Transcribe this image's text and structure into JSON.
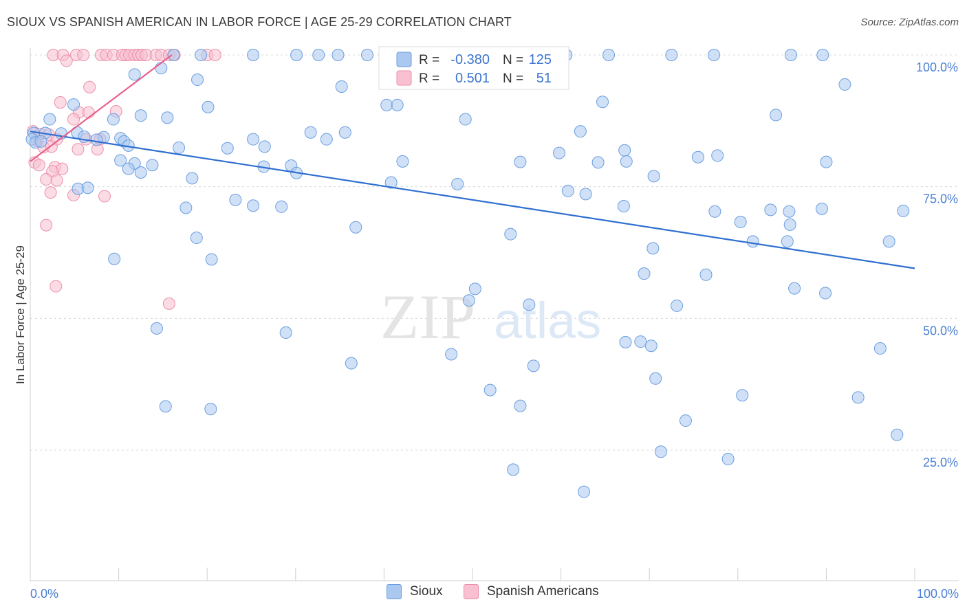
{
  "header": {
    "title": "SIOUX VS SPANISH AMERICAN IN LABOR FORCE | AGE 25-29 CORRELATION CHART",
    "source": "Source: ZipAtlas.com"
  },
  "colors": {
    "sioux_fill": "#aac8f0",
    "sioux_stroke": "#6a9ee0",
    "sioux_line": "#2f6fd0",
    "spanish_fill": "#f8c0d0",
    "spanish_stroke": "#ec8fab",
    "spanish_line": "#e8608a",
    "axis_label": "#4a7fd4",
    "grid": "#d8d8d8"
  },
  "watermark": {
    "zip": "ZIP",
    "atlas": "atlas"
  },
  "legend": {
    "r_label": "R =",
    "n_label": "N =",
    "sioux": {
      "r": "-0.380",
      "n": "125"
    },
    "spanish": {
      "r": "0.501",
      "n": "51"
    }
  },
  "chart_data": {
    "type": "scatter",
    "title": "SIOUX VS SPANISH AMERICAN IN LABOR FORCE | AGE 25-29 CORRELATION CHART",
    "xlabel": "",
    "ylabel": "In Labor Force | Age 25-29",
    "xlim": [
      0,
      100
    ],
    "ylim": [
      0,
      102
    ],
    "x_tick_labels": [
      "0.0%",
      "100.0%"
    ],
    "y_ticks": [
      25,
      50,
      75,
      100
    ],
    "y_tick_labels": [
      "25.0%",
      "50.0%",
      "75.0%",
      "100.0%"
    ],
    "legend_entries": [
      "Sioux",
      "Spanish Americans"
    ],
    "series": [
      {
        "name": "Sioux",
        "trend": {
          "x": [
            0,
            100
          ],
          "y": [
            85.5,
            59.5
          ]
        },
        "points": [
          [
            16.2,
            100
          ],
          [
            19.3,
            100
          ],
          [
            25.2,
            100
          ],
          [
            30.1,
            100
          ],
          [
            32.6,
            100
          ],
          [
            34.8,
            100
          ],
          [
            38.1,
            100
          ],
          [
            41.5,
            100
          ],
          [
            49.1,
            100
          ],
          [
            53.3,
            100
          ],
          [
            55.8,
            100
          ],
          [
            60.6,
            100
          ],
          [
            65.4,
            100
          ],
          [
            72.5,
            100
          ],
          [
            77.3,
            100
          ],
          [
            86.0,
            100
          ],
          [
            89.6,
            100
          ],
          [
            14.8,
            97.5
          ],
          [
            11.8,
            96.3
          ],
          [
            18.9,
            95.3
          ],
          [
            35.2,
            94.0
          ],
          [
            92.1,
            94.4
          ],
          [
            4.9,
            90.6
          ],
          [
            20.1,
            90.1
          ],
          [
            40.3,
            90.5
          ],
          [
            41.5,
            90.5
          ],
          [
            64.7,
            91.1
          ],
          [
            12.5,
            88.5
          ],
          [
            15.5,
            88.1
          ],
          [
            2.2,
            87.8
          ],
          [
            9.4,
            87.8
          ],
          [
            49.2,
            87.8
          ],
          [
            84.3,
            88.6
          ],
          [
            0.4,
            85.2
          ],
          [
            1.7,
            85.2
          ],
          [
            3.5,
            85.1
          ],
          [
            5.3,
            85.3
          ],
          [
            6.1,
            84.5
          ],
          [
            8.3,
            84.4
          ],
          [
            31.7,
            85.3
          ],
          [
            35.6,
            85.3
          ],
          [
            62.2,
            85.5
          ],
          [
            0.2,
            84.0
          ],
          [
            0.6,
            83.4
          ],
          [
            1.2,
            83.6
          ],
          [
            7.5,
            83.9
          ],
          [
            10.2,
            84.2
          ],
          [
            10.6,
            83.6
          ],
          [
            25.2,
            84.0
          ],
          [
            33.5,
            84.0
          ],
          [
            11.1,
            82.8
          ],
          [
            16.8,
            82.4
          ],
          [
            22.3,
            82.3
          ],
          [
            26.5,
            82.6
          ],
          [
            59.8,
            81.4
          ],
          [
            67.2,
            81.9
          ],
          [
            75.5,
            80.6
          ],
          [
            77.7,
            80.9
          ],
          [
            10.2,
            80.0
          ],
          [
            11.8,
            79.4
          ],
          [
            29.5,
            79.0
          ],
          [
            42.1,
            79.8
          ],
          [
            55.4,
            79.7
          ],
          [
            64.2,
            79.6
          ],
          [
            67.4,
            79.8
          ],
          [
            90.0,
            79.7
          ],
          [
            11.1,
            78.4
          ],
          [
            13.8,
            79.1
          ],
          [
            26.4,
            78.8
          ],
          [
            30.1,
            77.6
          ],
          [
            70.5,
            77.0
          ],
          [
            12.5,
            77.7
          ],
          [
            18.3,
            76.6
          ],
          [
            40.8,
            75.8
          ],
          [
            48.3,
            75.5
          ],
          [
            5.4,
            74.6
          ],
          [
            6.5,
            74.8
          ],
          [
            60.8,
            74.2
          ],
          [
            62.8,
            73.6
          ],
          [
            23.2,
            72.5
          ],
          [
            28.4,
            71.2
          ],
          [
            67.1,
            71.3
          ],
          [
            17.6,
            71.0
          ],
          [
            25.2,
            71.4
          ],
          [
            83.7,
            70.6
          ],
          [
            77.4,
            70.3
          ],
          [
            85.8,
            70.3
          ],
          [
            89.5,
            70.8
          ],
          [
            98.7,
            70.4
          ],
          [
            80.3,
            68.3
          ],
          [
            85.9,
            67.8
          ],
          [
            36.8,
            67.3
          ],
          [
            54.3,
            66.0
          ],
          [
            18.8,
            65.3
          ],
          [
            81.7,
            64.6
          ],
          [
            85.6,
            64.6
          ],
          [
            97.1,
            64.6
          ],
          [
            70.4,
            63.3
          ],
          [
            9.5,
            61.3
          ],
          [
            20.5,
            61.2
          ],
          [
            69.4,
            58.5
          ],
          [
            76.4,
            58.3
          ],
          [
            86.4,
            55.7
          ],
          [
            89.9,
            54.8
          ],
          [
            50.3,
            55.6
          ],
          [
            49.6,
            53.4
          ],
          [
            56.4,
            52.6
          ],
          [
            73.1,
            52.4
          ],
          [
            14.3,
            48.1
          ],
          [
            28.9,
            47.3
          ],
          [
            67.3,
            45.5
          ],
          [
            69.0,
            45.6
          ],
          [
            70.2,
            44.8
          ],
          [
            47.6,
            43.2
          ],
          [
            96.1,
            44.3
          ],
          [
            70.7,
            38.6
          ],
          [
            52.0,
            36.4
          ],
          [
            93.6,
            35.0
          ],
          [
            36.3,
            41.5
          ],
          [
            56.9,
            41.0
          ],
          [
            15.3,
            33.3
          ],
          [
            20.4,
            32.8
          ],
          [
            80.5,
            35.4
          ],
          [
            55.4,
            33.4
          ],
          [
            71.3,
            24.7
          ],
          [
            54.6,
            21.3
          ],
          [
            62.6,
            17.1
          ],
          [
            78.9,
            23.3
          ],
          [
            98.0,
            27.9
          ],
          [
            74.1,
            30.6
          ]
        ]
      },
      {
        "name": "Spanish Americans",
        "trend": {
          "x": [
            0,
            16.0
          ],
          "y": [
            79.8,
            100.0
          ]
        },
        "points": [
          [
            2.6,
            100
          ],
          [
            3.7,
            100
          ],
          [
            5.2,
            100
          ],
          [
            6.0,
            100
          ],
          [
            8.0,
            100
          ],
          [
            8.6,
            100
          ],
          [
            9.4,
            100
          ],
          [
            10.4,
            100
          ],
          [
            10.8,
            100
          ],
          [
            11.2,
            100
          ],
          [
            11.8,
            100
          ],
          [
            12.2,
            100
          ],
          [
            12.6,
            100
          ],
          [
            13.1,
            100
          ],
          [
            14.2,
            100
          ],
          [
            14.8,
            100
          ],
          [
            15.7,
            100
          ],
          [
            16.3,
            100
          ],
          [
            20.0,
            100
          ],
          [
            20.9,
            100
          ],
          [
            4.1,
            98.9
          ],
          [
            6.7,
            93.9
          ],
          [
            3.4,
            91.0
          ],
          [
            5.5,
            89.1
          ],
          [
            6.6,
            89.1
          ],
          [
            9.7,
            89.3
          ],
          [
            4.9,
            87.8
          ],
          [
            0.3,
            85.5
          ],
          [
            1.1,
            85.0
          ],
          [
            2.1,
            84.9
          ],
          [
            3.0,
            84.0
          ],
          [
            6.3,
            84.0
          ],
          [
            7.9,
            84.0
          ],
          [
            0.8,
            83.7
          ],
          [
            1.5,
            82.5
          ],
          [
            2.4,
            82.6
          ],
          [
            5.4,
            82.1
          ],
          [
            7.6,
            82.1
          ],
          [
            0.5,
            79.6
          ],
          [
            1.0,
            79.1
          ],
          [
            2.8,
            78.7
          ],
          [
            3.6,
            78.4
          ],
          [
            2.5,
            77.9
          ],
          [
            1.8,
            76.4
          ],
          [
            3.0,
            76.2
          ],
          [
            2.3,
            73.9
          ],
          [
            4.9,
            73.4
          ],
          [
            8.4,
            73.2
          ],
          [
            1.8,
            67.7
          ],
          [
            2.9,
            56.1
          ],
          [
            15.7,
            52.8
          ]
        ]
      }
    ]
  },
  "bottom_legend": {
    "sioux": "Sioux",
    "spanish": "Spanish Americans"
  }
}
